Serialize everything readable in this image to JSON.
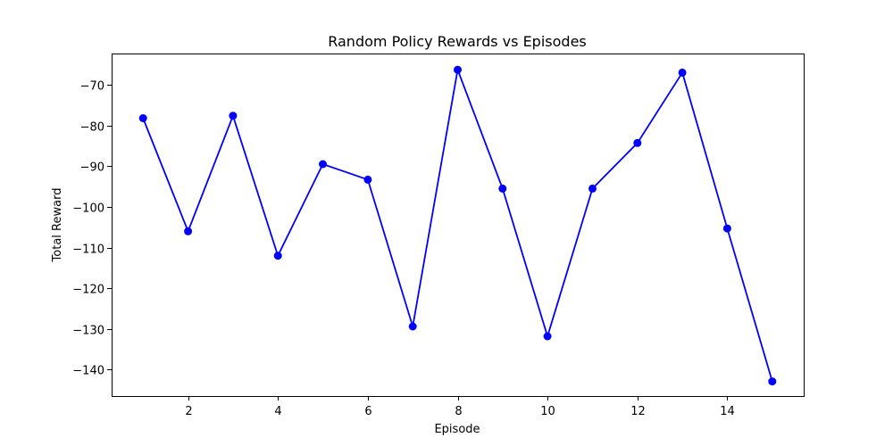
{
  "chart_data": {
    "type": "line",
    "title": "Random Policy Rewards vs Episodes",
    "xlabel": "Episode",
    "ylabel": "Total Reward",
    "xlim": [
      0.3,
      15.7
    ],
    "ylim": [
      -146.5,
      -62.3
    ],
    "xticks": [
      2,
      4,
      6,
      8,
      10,
      12,
      14
    ],
    "yticks": [
      -70,
      -80,
      -90,
      -100,
      -110,
      -120,
      -130,
      -140
    ],
    "grid": false,
    "series": [
      {
        "color": "#0000ff",
        "marker": "circle",
        "x": [
          1,
          2,
          3,
          4,
          5,
          6,
          7,
          8,
          9,
          10,
          11,
          12,
          13,
          14,
          15
        ],
        "y": [
          -78.2,
          -106.0,
          -77.6,
          -112.0,
          -89.5,
          -93.3,
          -129.4,
          -66.3,
          -95.5,
          -131.8,
          -95.5,
          -84.3,
          -67.0,
          -105.3,
          -142.9
        ]
      }
    ]
  }
}
